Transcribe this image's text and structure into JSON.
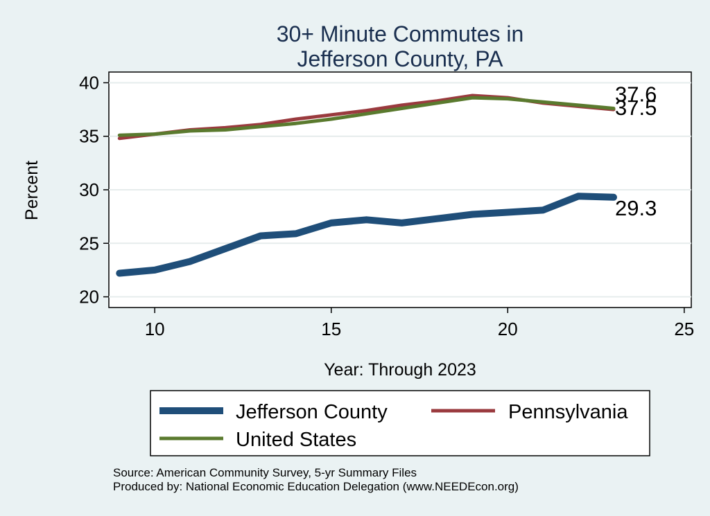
{
  "chart_data": {
    "type": "line",
    "title": [
      "30+ Minute Commutes in",
      "Jefferson County, PA"
    ],
    "xlabel": "Year: Through 2023",
    "ylabel": "Percent",
    "xlim": [
      8.7,
      25.2
    ],
    "ylim": [
      19,
      41
    ],
    "x_ticks": [
      10,
      15,
      20,
      25
    ],
    "y_ticks": [
      20,
      25,
      30,
      35,
      40
    ],
    "grid": true,
    "series": [
      {
        "name": "Jefferson County",
        "color": "#1f4e79",
        "width": "thick",
        "x": [
          9,
          10,
          11,
          12,
          13,
          14,
          15,
          16,
          17,
          18,
          19,
          20,
          21,
          22,
          23
        ],
        "values": [
          22.2,
          22.5,
          23.3,
          24.5,
          25.7,
          25.9,
          26.9,
          27.2,
          26.9,
          27.3,
          27.7,
          27.9,
          28.1,
          29.4,
          29.3
        ],
        "end_label": "29.3"
      },
      {
        "name": "Pennsylvania",
        "color": "#9a3a3e",
        "width": "medium",
        "x": [
          9,
          10,
          11,
          12,
          13,
          14,
          15,
          16,
          17,
          18,
          19,
          20,
          21,
          22,
          23
        ],
        "values": [
          34.8,
          35.2,
          35.6,
          35.8,
          36.1,
          36.6,
          37.0,
          37.4,
          37.9,
          38.3,
          38.8,
          38.6,
          38.1,
          37.8,
          37.5
        ],
        "end_label": "37.5"
      },
      {
        "name": "United States",
        "color": "#5a7a2e",
        "width": "medium",
        "x": [
          9,
          10,
          11,
          12,
          13,
          14,
          15,
          16,
          17,
          18,
          19,
          20,
          21,
          22,
          23
        ],
        "values": [
          35.1,
          35.2,
          35.5,
          35.6,
          35.9,
          36.2,
          36.6,
          37.1,
          37.6,
          38.1,
          38.6,
          38.5,
          38.2,
          37.9,
          37.6
        ],
        "end_label": "37.6"
      }
    ],
    "legend": [
      "Jefferson County",
      "Pennsylvania",
      "United States"
    ],
    "notes": [
      "Source: American Community Survey, 5-yr Summary Files",
      "Produced by: National Economic Education Delegation (www.NEEDEcon.org)"
    ]
  }
}
